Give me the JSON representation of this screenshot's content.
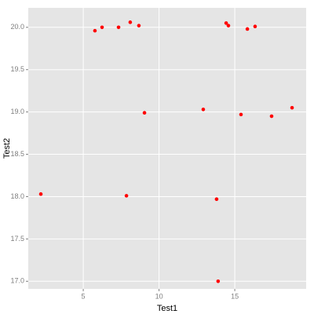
{
  "chart_data": {
    "type": "scatter",
    "x_label": "Test1",
    "y_label": "Test2",
    "x": [
      2.2,
      5.77,
      6.24,
      7.33,
      8.1,
      8.67,
      9.04,
      7.85,
      12.92,
      13.8,
      13.9,
      14.43,
      14.58,
      15.41,
      15.83,
      16.34,
      17.43,
      18.78
    ],
    "y": [
      18.03,
      19.96,
      20.0,
      20.0,
      20.06,
      20.02,
      18.99,
      18.01,
      19.03,
      17.97,
      17.0,
      20.05,
      20.02,
      18.97,
      19.98,
      20.01,
      18.95,
      19.05
    ],
    "color": "#ff0000",
    "xlim": [
      1.37,
      19.71
    ],
    "ylim": [
      16.91,
      20.23
    ],
    "xticks": [
      5,
      10,
      15
    ],
    "yticks": [
      {
        "value": 17,
        "label": "17.0"
      },
      {
        "value": 17.5,
        "label": "17.5"
      },
      {
        "value": 18,
        "label": "18.0"
      },
      {
        "value": 18.5,
        "label": "18.5"
      },
      {
        "value": 19,
        "label": "19.0"
      },
      {
        "value": 19.5,
        "label": "19.5"
      },
      {
        "value": 20,
        "label": "20.0"
      }
    ],
    "grid": true
  }
}
